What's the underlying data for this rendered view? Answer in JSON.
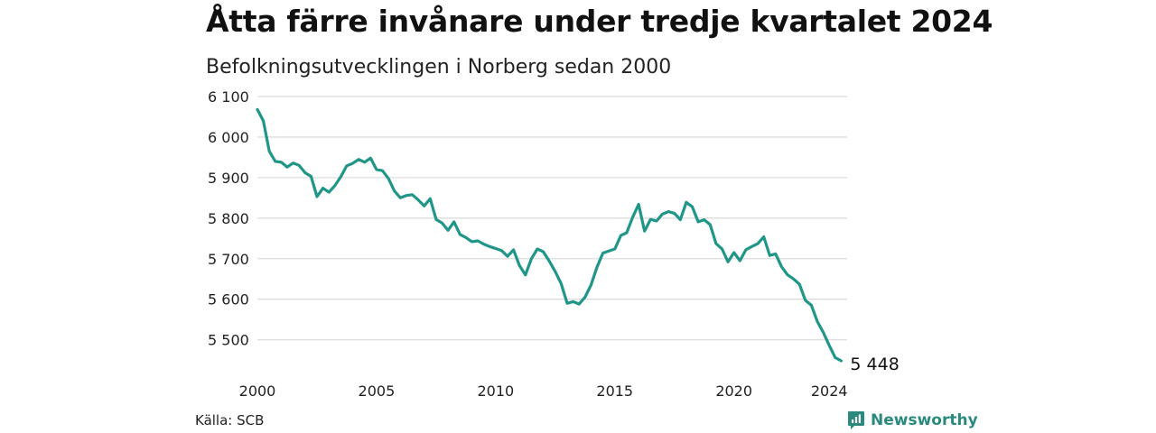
{
  "header": {
    "title": "Åtta färre invånare under tredje kvartalet 2024",
    "subtitle": "Befolkningsutvecklingen i Norberg sedan 2000"
  },
  "footer": {
    "source": "Källa: SCB",
    "brand": "Newsworthy"
  },
  "colors": {
    "line": "#1f9688",
    "grid": "#dddddd",
    "brand": "#2a8a7d"
  },
  "chart_data": {
    "type": "line",
    "title": "Åtta färre invånare under tredje kvartalet 2024",
    "subtitle": "Befolkningsutvecklingen i Norberg sedan 2000",
    "xlabel": "",
    "ylabel": "",
    "x_ticks": [
      "2000",
      "2005",
      "2010",
      "2015",
      "2020",
      "2024"
    ],
    "x_tick_years": [
      2000,
      2005,
      2010,
      2015,
      2020,
      2024
    ],
    "y_ticks": [
      "5 500",
      "5 600",
      "5 700",
      "5 800",
      "5 900",
      "6 000",
      "6 100"
    ],
    "y_tick_values": [
      5500,
      5600,
      5700,
      5800,
      5900,
      6000,
      6100
    ],
    "xlim": [
      2000,
      2024.75
    ],
    "ylim": [
      5448,
      6100
    ],
    "grid": true,
    "end_label": "5 448",
    "series": [
      {
        "start": "2000-Q1",
        "frequency": "quarterly",
        "values": [
          6068,
          6040,
          5965,
          5940,
          5938,
          5926,
          5936,
          5930,
          5912,
          5903,
          5853,
          5874,
          5864,
          5880,
          5902,
          5929,
          5935,
          5945,
          5938,
          5948,
          5920,
          5917,
          5898,
          5867,
          5850,
          5856,
          5858,
          5845,
          5830,
          5848,
          5797,
          5788,
          5770,
          5791,
          5760,
          5752,
          5742,
          5744,
          5736,
          5730,
          5725,
          5720,
          5706,
          5722,
          5683,
          5660,
          5700,
          5724,
          5717,
          5694,
          5668,
          5638,
          5590,
          5594,
          5588,
          5605,
          5635,
          5679,
          5714,
          5719,
          5724,
          5757,
          5764,
          5802,
          5834,
          5768,
          5797,
          5793,
          5810,
          5816,
          5812,
          5796,
          5839,
          5828,
          5791,
          5796,
          5784,
          5737,
          5724,
          5692,
          5715,
          5695,
          5722,
          5730,
          5737,
          5754,
          5708,
          5712,
          5680,
          5660,
          5650,
          5637,
          5597,
          5585,
          5545,
          5518,
          5486,
          5456,
          5448
        ]
      }
    ]
  }
}
